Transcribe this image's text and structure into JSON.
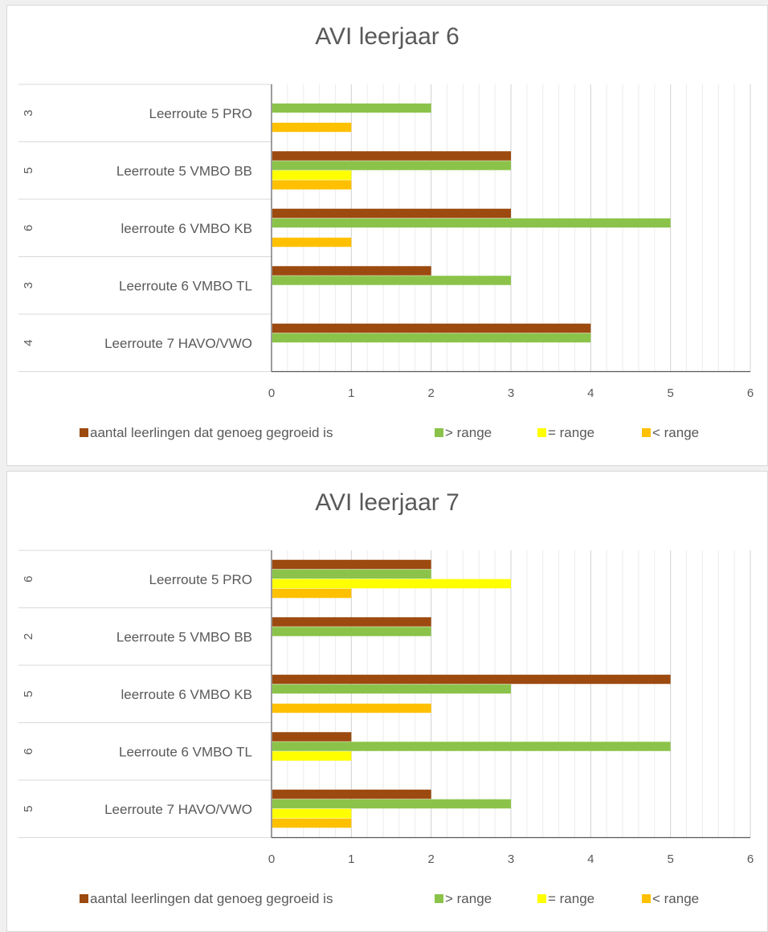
{
  "chart_data": [
    {
      "type": "bar",
      "orientation": "horizontal",
      "title": "AVI leerjaar 6",
      "row_groups": [
        {
          "outer_label": "3",
          "label": "Leerroute 5 PRO"
        },
        {
          "outer_label": "5",
          "label": "Leerroute 5 VMBO BB"
        },
        {
          "outer_label": "6",
          "label": "leerroute 6 VMBO KB"
        },
        {
          "outer_label": "3",
          "label": "Leerroute 6 VMBO TL"
        },
        {
          "outer_label": "4",
          "label": "Leerroute 7 HAVO/VWO"
        }
      ],
      "series": [
        {
          "name": "aantal leerlingen dat genoeg gegroeid is",
          "color": "#9c4a0f",
          "values": [
            0,
            3,
            3,
            2,
            4
          ]
        },
        {
          "name": "> range",
          "color": "#8bc34a",
          "values": [
            2,
            3,
            5,
            3,
            4
          ]
        },
        {
          "name": "= range",
          "color": "#ffff00",
          "values": [
            0,
            1,
            0,
            0,
            0
          ]
        },
        {
          "name": "< range",
          "color": "#ffc000",
          "values": [
            1,
            1,
            1,
            0,
            0
          ]
        }
      ],
      "xlim": [
        0,
        6
      ],
      "xticks": [
        "0",
        "1",
        "2",
        "3",
        "4",
        "5",
        "6"
      ],
      "grid": true,
      "legend": "bottom"
    },
    {
      "type": "bar",
      "orientation": "horizontal",
      "title": "AVI leerjaar 7",
      "row_groups": [
        {
          "outer_label": "6",
          "label": "Leerroute 5 PRO"
        },
        {
          "outer_label": "2",
          "label": "Leerroute 5 VMBO BB"
        },
        {
          "outer_label": "5",
          "label": "leerroute 6 VMBO KB"
        },
        {
          "outer_label": "6",
          "label": "Leerroute 6 VMBO TL"
        },
        {
          "outer_label": "5",
          "label": "Leerroute 7 HAVO/VWO"
        }
      ],
      "series": [
        {
          "name": "aantal leerlingen dat genoeg gegroeid is",
          "color": "#9c4a0f",
          "values": [
            2,
            2,
            5,
            1,
            2
          ]
        },
        {
          "name": "> range",
          "color": "#8bc34a",
          "values": [
            2,
            2,
            3,
            5,
            3
          ]
        },
        {
          "name": "= range",
          "color": "#ffff00",
          "values": [
            3,
            0,
            0,
            1,
            1
          ]
        },
        {
          "name": "< range",
          "color": "#ffc000",
          "values": [
            1,
            0,
            2,
            0,
            1
          ]
        }
      ],
      "xlim": [
        0,
        6
      ],
      "xticks": [
        "0",
        "1",
        "2",
        "3",
        "4",
        "5",
        "6"
      ],
      "grid": true,
      "legend": "bottom"
    }
  ]
}
